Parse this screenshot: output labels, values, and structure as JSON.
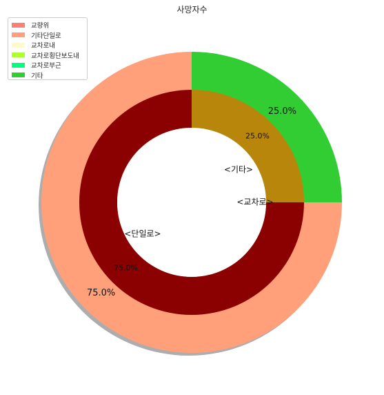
{
  "chart_data": {
    "type": "pie",
    "title": "사망자수",
    "legend": {
      "placement": "upper-left",
      "entries": [
        {
          "label": "교량위",
          "color": "#fa8072"
        },
        {
          "label": "기타단일로",
          "color": "#ffa07a"
        },
        {
          "label": "교차로내",
          "color": "#fffacd"
        },
        {
          "label": "교차로횡단보도내",
          "color": "#adff2f"
        },
        {
          "label": "교차로부근",
          "color": "#00ff7f"
        },
        {
          "label": "기타",
          "color": "#32cd32"
        }
      ]
    },
    "outer_ring": {
      "slices": [
        {
          "category": "기타단일로",
          "value": 75.0,
          "label": "75.0%",
          "color": "#ffa07a"
        },
        {
          "category": "기타",
          "value": 25.0,
          "label": "25.0%",
          "color": "#32cd32"
        }
      ]
    },
    "inner_ring": {
      "slices": [
        {
          "category": "<단일로>",
          "value": 75.0,
          "label": "75.0%",
          "color": "#8b0000"
        },
        {
          "category": "<기타>",
          "value": 25.0,
          "label": "25.0%",
          "color": "#b8860b"
        }
      ]
    },
    "annotations": [
      "<단일로>",
      "<기타>",
      "<교차로>"
    ],
    "shadow": true
  }
}
